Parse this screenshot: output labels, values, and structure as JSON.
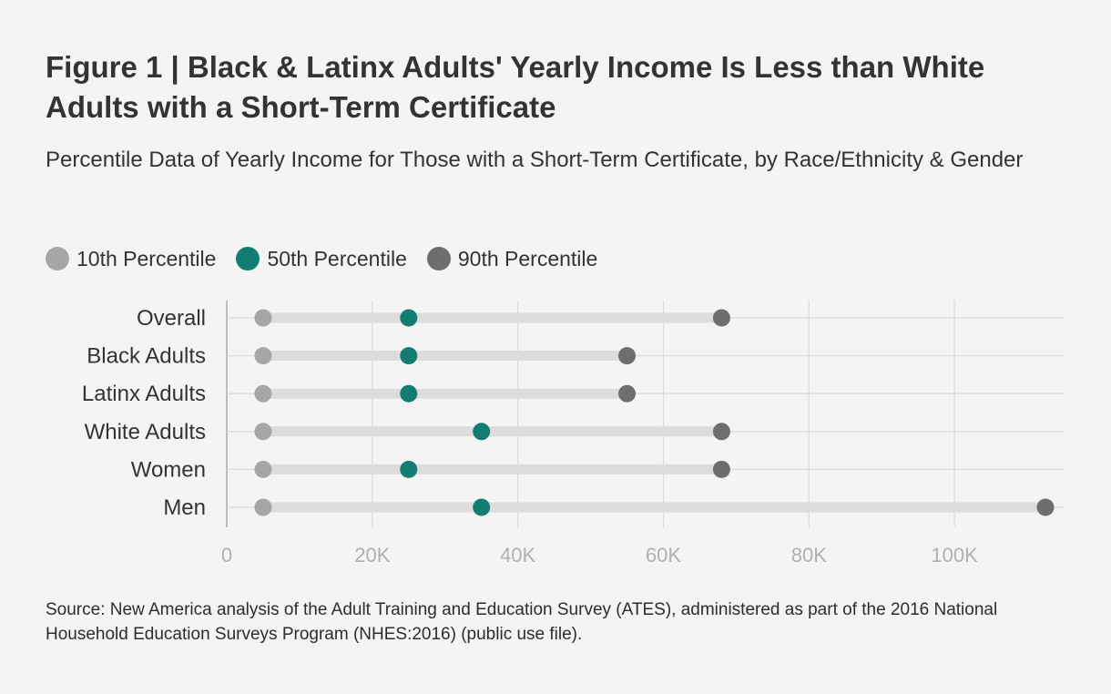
{
  "title": "Figure 1 | Black & Latinx Adults' Yearly Income Is Less than White Adults with a Short-Term Certificate",
  "subtitle": "Percentile Data of Yearly Income for Those with a Short-Term Certificate, by Race/Ethnicity & Gender",
  "source": "Source: New America analysis of the Adult Training and Education Survey (ATES), administered as part of the 2016 National Household Education Surveys Program (NHES:2016) (public use file).",
  "colors": {
    "p10": "#a6a6a6",
    "p50": "#137d72",
    "p90": "#6e6e6e",
    "range_bar": "#dcdcdc",
    "grid": "#dcdcdc",
    "axis": "#bdbdbd",
    "tick_text": "#b0b0b0"
  },
  "legend": [
    {
      "key": "p10",
      "label": "10th Percentile"
    },
    {
      "key": "p50",
      "label": "50th Percentile"
    },
    {
      "key": "p90",
      "label": "90th Percentile"
    }
  ],
  "chart_data": {
    "type": "dumbbell",
    "categories": [
      "Overall",
      "Black Adults",
      "Latinx Adults",
      "White Adults",
      "Women",
      "Men"
    ],
    "series": [
      {
        "name": "10th Percentile",
        "key": "p10",
        "values": [
          5000,
          5000,
          5000,
          5000,
          5000,
          5000
        ]
      },
      {
        "name": "50th Percentile",
        "key": "p50",
        "values": [
          25000,
          25000,
          25000,
          35000,
          25000,
          35000
        ]
      },
      {
        "name": "90th Percentile",
        "key": "p90",
        "values": [
          68000,
          55000,
          55000,
          68000,
          68000,
          112500
        ]
      }
    ],
    "xlim": [
      0,
      115000
    ],
    "xticks": [
      0,
      20000,
      40000,
      60000,
      80000,
      100000
    ],
    "xtick_labels": [
      "0",
      "20K",
      "40K",
      "60K",
      "80K",
      "100K"
    ],
    "grid": true
  }
}
